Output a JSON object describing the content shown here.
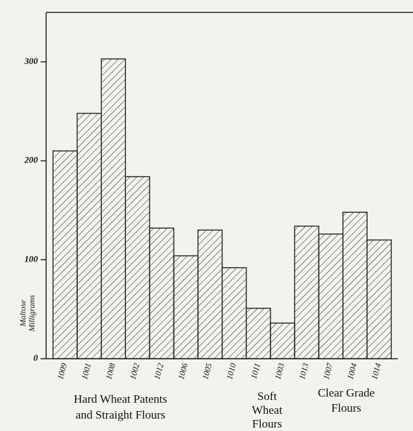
{
  "chart_data": {
    "type": "bar",
    "y_label": [
      "Maltose",
      "Milligrams"
    ],
    "categories": [
      "1009",
      "1001",
      "1008",
      "1002",
      "1012",
      "1006",
      "1005",
      "1010",
      "1011",
      "1003",
      "1013",
      "1007",
      "1004",
      "1014"
    ],
    "values": [
      210,
      248,
      303,
      184,
      132,
      104,
      130,
      92,
      51,
      36,
      134,
      126,
      148,
      120
    ],
    "color": "#222222",
    "ylim": [
      0,
      350
    ],
    "yticks": [
      0,
      100,
      200,
      300
    ],
    "groups": [
      {
        "label": [
          "Hard Wheat Patents",
          "and Straight Flours"
        ]
      },
      {
        "label": [
          "Soft",
          "Wheat",
          "Flours"
        ]
      },
      {
        "label": [
          "Clear Grade",
          "Flours"
        ]
      }
    ]
  }
}
